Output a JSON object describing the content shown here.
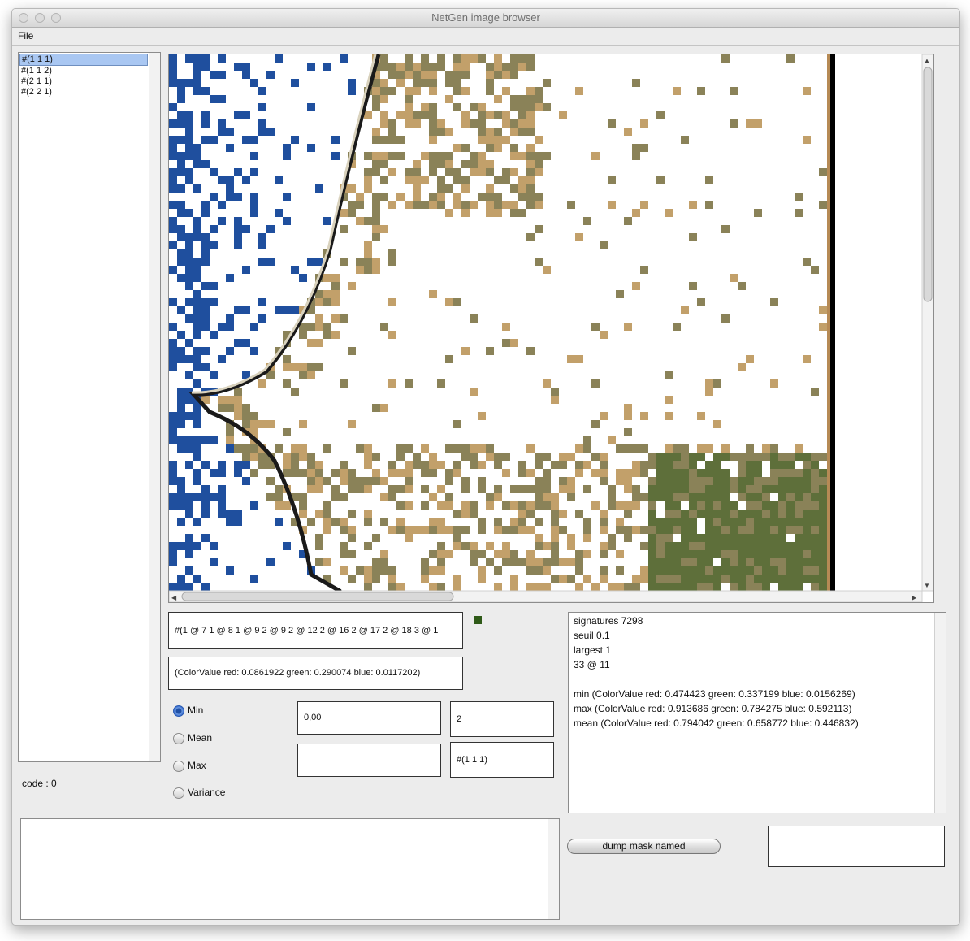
{
  "window": {
    "title": "NetGen image browser"
  },
  "menu": {
    "file": "File"
  },
  "list": {
    "items": [
      {
        "label": "#(1 1 1)",
        "selected": true
      },
      {
        "label": "#(1 1 2)",
        "selected": false
      },
      {
        "label": "#(2 1 1)",
        "selected": false
      },
      {
        "label": "#(2 2 1)",
        "selected": false
      }
    ]
  },
  "status": {
    "code": "code : 0"
  },
  "fields": {
    "signature": "#(1 @ 7 1 @ 8 1 @ 9 2 @ 9 2 @ 12 2 @ 16 2 @ 17 2 @ 18 3 @ 1",
    "color": "(ColorValue red: 0.0861922 green: 0.290074 blue: 0.0117202)",
    "value1": "0,00",
    "value2": "2",
    "value3": "",
    "value4": "#(1 1 1)",
    "mask_name": ""
  },
  "swatch_color": "#2f5a18",
  "radios": [
    {
      "label": "Min",
      "checked": true
    },
    {
      "label": "Mean",
      "checked": false
    },
    {
      "label": "Max",
      "checked": false
    },
    {
      "label": "Variance",
      "checked": false
    }
  ],
  "info_lines": [
    "signatures  7298",
    "seuil  0.1",
    "largest  1",
    "33 @ 11",
    "",
    "min (ColorValue red: 0.474423 green: 0.337199 blue: 0.0156269)",
    "max (ColorValue red: 0.913686 green: 0.784275 blue: 0.592113)",
    "mean (ColorValue red: 0.794042 green: 0.658772 blue: 0.446832)"
  ],
  "buttons": {
    "dump": "dump mask named"
  },
  "map_colors": {
    "water": "#1f4f9e",
    "land": "#8a8258",
    "sand": "#c2a06a",
    "vegetation": "#5e6f3a"
  }
}
